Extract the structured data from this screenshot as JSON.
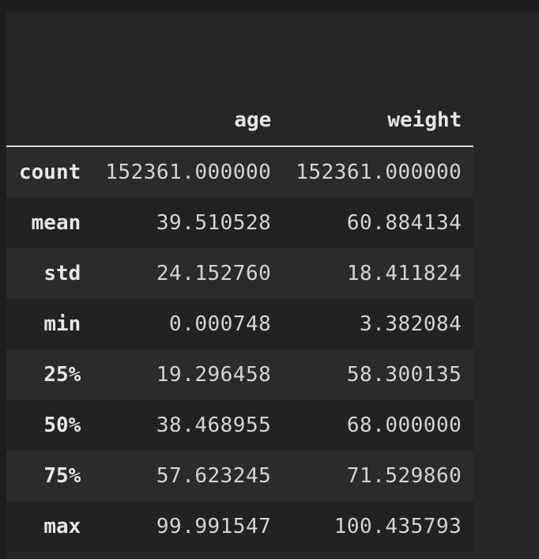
{
  "table": {
    "index_header": "",
    "columns": [
      "age",
      "weight"
    ],
    "rows": [
      {
        "label": "count",
        "values": [
          "152361.000000",
          "152361.000000"
        ]
      },
      {
        "label": "mean",
        "values": [
          "39.510528",
          "60.884134"
        ]
      },
      {
        "label": "std",
        "values": [
          "24.152760",
          "18.411824"
        ]
      },
      {
        "label": "min",
        "values": [
          "0.000748",
          "3.382084"
        ]
      },
      {
        "label": "25%",
        "values": [
          "19.296458",
          "58.300135"
        ]
      },
      {
        "label": "50%",
        "values": [
          "38.468955",
          "68.000000"
        ]
      },
      {
        "label": "75%",
        "values": [
          "57.623245",
          "71.529860"
        ]
      },
      {
        "label": "max",
        "values": [
          "99.991547",
          "100.435793"
        ]
      }
    ]
  },
  "colors": {
    "background": "#1e1e1e",
    "cell_background": "#262626",
    "row_alt": "#2b2b2b",
    "text": "#d4d4d4",
    "header_rule": "#d8d8d8"
  }
}
